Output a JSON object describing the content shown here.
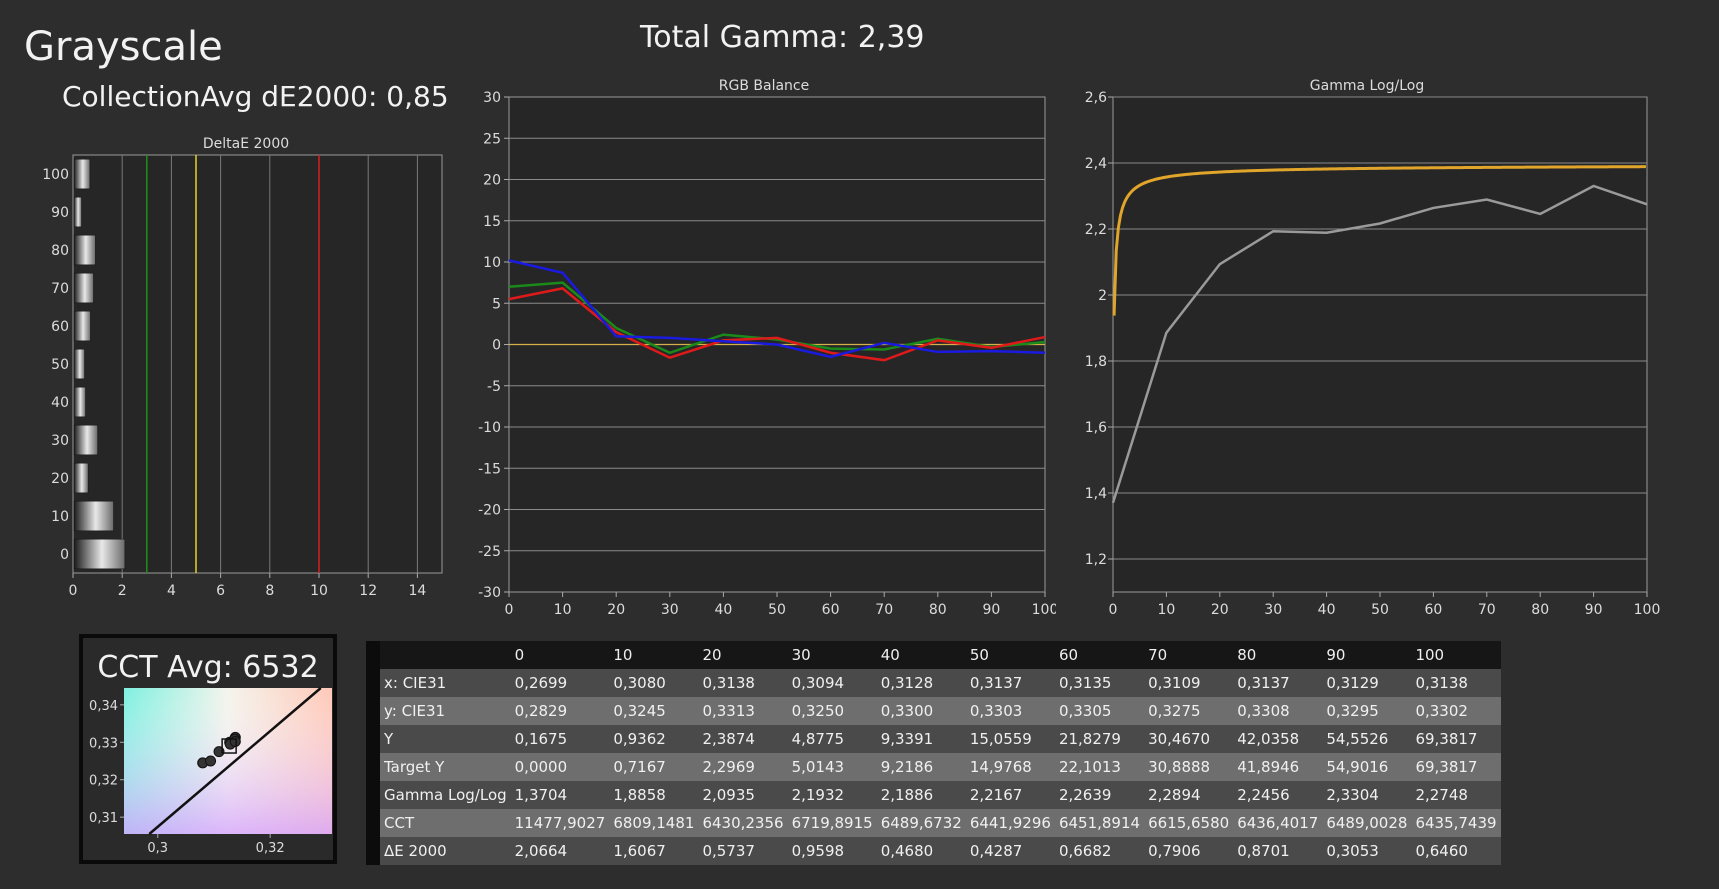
{
  "header": {
    "title": "Grayscale",
    "collection_avg": "CollectionAvg dE2000: 0,85",
    "total_gamma": "Total Gamma: 2,39"
  },
  "chart_data": [
    {
      "type": "bar",
      "orientation": "horizontal",
      "title": "DeltaE 2000",
      "categories": [
        "0",
        "10",
        "20",
        "30",
        "40",
        "50",
        "60",
        "70",
        "80",
        "90",
        "100"
      ],
      "values": [
        2.0664,
        1.6067,
        0.5737,
        0.9598,
        0.468,
        0.4287,
        0.6682,
        0.7906,
        0.8701,
        0.3053,
        0.646
      ],
      "xlim": [
        0,
        15
      ],
      "xticks": [
        "0",
        "2",
        "4",
        "6",
        "8",
        "10",
        "12",
        "14"
      ],
      "threshold_lines": [
        {
          "value": 3,
          "color": "#1f8f1f"
        },
        {
          "value": 5,
          "color": "#e6d21e"
        },
        {
          "value": 10,
          "color": "#d42020"
        }
      ],
      "grid": true
    },
    {
      "type": "line",
      "title": "RGB Balance",
      "x": [
        0,
        10,
        20,
        30,
        40,
        50,
        60,
        70,
        80,
        90,
        100
      ],
      "ylim": [
        -30,
        30
      ],
      "xlim": [
        0,
        100
      ],
      "yticks": [
        "30",
        "25",
        "20",
        "15",
        "10",
        "5",
        "0",
        "-5",
        "-10",
        "-15",
        "-20",
        "-25",
        "-30"
      ],
      "xticks": [
        "0",
        "10",
        "20",
        "30",
        "40",
        "50",
        "60",
        "70",
        "80",
        "90",
        "100"
      ],
      "series": [
        {
          "color": "#1a8a1a",
          "values": [
            7.0,
            7.5,
            2.0,
            -1.0,
            1.2,
            0.6,
            -0.5,
            -0.6,
            0.7,
            -0.3,
            0.3
          ]
        },
        {
          "color": "#e01a1a",
          "values": [
            5.5,
            6.8,
            1.5,
            -1.6,
            0.5,
            0.8,
            -1.0,
            -1.9,
            0.5,
            -0.4,
            0.9
          ]
        },
        {
          "color": "#1a1ae0",
          "values": [
            10.2,
            8.7,
            1.0,
            0.8,
            0.4,
            0.0,
            -1.5,
            0.2,
            -0.9,
            -0.8,
            -1.0
          ]
        }
      ],
      "grid": true
    },
    {
      "type": "line",
      "title": "Gamma Log/Log",
      "x": [
        0,
        10,
        20,
        30,
        40,
        50,
        60,
        70,
        80,
        90,
        100
      ],
      "ylim": [
        1.1,
        2.6
      ],
      "xlim": [
        0,
        100
      ],
      "yticks": [
        "2,6",
        "2,4",
        "2,2",
        "2",
        "1,8",
        "1,6",
        "1,4",
        "1,2"
      ],
      "ytick_values": [
        2.6,
        2.4,
        2.2,
        2.0,
        1.8,
        1.6,
        1.4,
        1.2
      ],
      "xticks": [
        "0",
        "10",
        "20",
        "30",
        "40",
        "50",
        "60",
        "70",
        "80",
        "90",
        "100"
      ],
      "series": [
        {
          "color": "#9a9a9a",
          "values": [
            1.3704,
            1.8858,
            2.0935,
            2.1932,
            2.1886,
            2.2167,
            2.2639,
            2.2894,
            2.2456,
            2.3304,
            2.2748
          ]
        }
      ],
      "target_gamma": 2.4,
      "target_color": "#e0a52a",
      "grid": true
    },
    {
      "type": "scatter",
      "title": "CCT Avg: 6532",
      "xlim": [
        0.294,
        0.331
      ],
      "ylim": [
        0.3055,
        0.3445
      ],
      "xticks": [
        "0,3",
        "0,32"
      ],
      "xtick_values": [
        0.3,
        0.32
      ],
      "yticks": [
        "0,34",
        "0,33",
        "0,32",
        "0,31"
      ],
      "ytick_values": [
        0.34,
        0.33,
        0.32,
        0.31
      ],
      "x": [
        0.308,
        0.3138,
        0.3094,
        0.3128,
        0.3137,
        0.3135,
        0.3109,
        0.3137,
        0.3129,
        0.3138
      ],
      "y": [
        0.3245,
        0.3313,
        0.325,
        0.33,
        0.3303,
        0.3305,
        0.3275,
        0.3308,
        0.3295,
        0.3302
      ],
      "target": {
        "x": 0.3127,
        "y": 0.329
      }
    }
  ],
  "table": {
    "header": [
      "",
      "0",
      "10",
      "20",
      "30",
      "40",
      "50",
      "60",
      "70",
      "80",
      "90",
      "100"
    ],
    "rows": [
      [
        "x: CIE31",
        "0,2699",
        "0,3080",
        "0,3138",
        "0,3094",
        "0,3128",
        "0,3137",
        "0,3135",
        "0,3109",
        "0,3137",
        "0,3129",
        "0,3138"
      ],
      [
        "y: CIE31",
        "0,2829",
        "0,3245",
        "0,3313",
        "0,3250",
        "0,3300",
        "0,3303",
        "0,3305",
        "0,3275",
        "0,3308",
        "0,3295",
        "0,3302"
      ],
      [
        "Y",
        "0,1675",
        "0,9362",
        "2,3874",
        "4,8775",
        "9,3391",
        "15,0559",
        "21,8279",
        "30,4670",
        "42,0358",
        "54,5526",
        "69,3817"
      ],
      [
        "Target Y",
        "0,0000",
        "0,7167",
        "2,2969",
        "5,0143",
        "9,2186",
        "14,9768",
        "22,1013",
        "30,8888",
        "41,8946",
        "54,9016",
        "69,3817"
      ],
      [
        "Gamma Log/Log",
        "1,3704",
        "1,8858",
        "2,0935",
        "2,1932",
        "2,1886",
        "2,2167",
        "2,2639",
        "2,2894",
        "2,2456",
        "2,3304",
        "2,2748"
      ],
      [
        "CCT",
        "11477,9027",
        "6809,1481",
        "6430,2356",
        "6719,8915",
        "6489,6732",
        "6441,9296",
        "6451,8914",
        "6615,6580",
        "6436,4017",
        "6489,0028",
        "6435,7439"
      ],
      [
        "ΔE 2000",
        "2,0664",
        "1,6067",
        "0,5737",
        "0,9598",
        "0,4680",
        "0,4287",
        "0,6682",
        "0,7906",
        "0,8701",
        "0,3053",
        "0,6460"
      ]
    ]
  }
}
